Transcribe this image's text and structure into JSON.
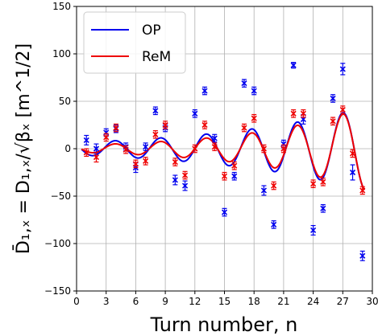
{
  "chart_data": {
    "type": "line",
    "xlabel": "Turn number, n",
    "ylabel": "D̄₁,ₓ = D₁,ₓ/√βₓ [m^1/2]",
    "xlim": [
      0,
      30
    ],
    "ylim": [
      -150,
      150
    ],
    "xticks": [
      0,
      3,
      6,
      9,
      12,
      15,
      18,
      21,
      24,
      27,
      30
    ],
    "yticks": [
      -150,
      -100,
      -50,
      0,
      50,
      100,
      150
    ],
    "grid": true,
    "legend_position": "top-left",
    "series": [
      {
        "name": "OP",
        "color": "#0000ee",
        "curve": {
          "amplitude_start": 7,
          "amplitude_growth": 0.065,
          "period": 4.62,
          "phase_peak_n": 27.0
        },
        "points": [
          {
            "x": 1,
            "y": 9,
            "err": 5
          },
          {
            "x": 2,
            "y": 0,
            "err": 5
          },
          {
            "x": 3,
            "y": 17,
            "err": 4
          },
          {
            "x": 4,
            "y": 21,
            "err": 4
          },
          {
            "x": 5,
            "y": 2,
            "err": 4
          },
          {
            "x": 6,
            "y": -20,
            "err": 5
          },
          {
            "x": 7,
            "y": 2,
            "err": 4
          },
          {
            "x": 8,
            "y": 40,
            "err": 4
          },
          {
            "x": 9,
            "y": 22,
            "err": 4
          },
          {
            "x": 10,
            "y": -33,
            "err": 5
          },
          {
            "x": 11,
            "y": -39,
            "err": 5
          },
          {
            "x": 12,
            "y": 37,
            "err": 4
          },
          {
            "x": 13,
            "y": 61,
            "err": 4
          },
          {
            "x": 14,
            "y": 11,
            "err": 4
          },
          {
            "x": 15,
            "y": -67,
            "err": 4
          },
          {
            "x": 16,
            "y": -29,
            "err": 4
          },
          {
            "x": 17,
            "y": 69,
            "err": 4
          },
          {
            "x": 18,
            "y": 61,
            "err": 4
          },
          {
            "x": 19,
            "y": -44,
            "err": 5
          },
          {
            "x": 20,
            "y": -80,
            "err": 4
          },
          {
            "x": 21,
            "y": 5,
            "err": 4
          },
          {
            "x": 22,
            "y": 88,
            "err": 3
          },
          {
            "x": 23,
            "y": 31,
            "err": 5
          },
          {
            "x": 24,
            "y": -86,
            "err": 5
          },
          {
            "x": 25,
            "y": -63,
            "err": 4
          },
          {
            "x": 26,
            "y": 53,
            "err": 4
          },
          {
            "x": 27,
            "y": 84,
            "err": 6
          },
          {
            "x": 28,
            "y": -25,
            "err": 8
          },
          {
            "x": 29,
            "y": -113,
            "err": 5
          }
        ]
      },
      {
        "name": "ReM",
        "color": "#ee0000",
        "curve": {
          "amplitude_start": 4,
          "amplitude_growth": 0.085,
          "period": 4.62,
          "phase_peak_n": 27.0
        },
        "points": [
          {
            "x": 1,
            "y": -4,
            "err": 4
          },
          {
            "x": 2,
            "y": -9,
            "err": 5
          },
          {
            "x": 3,
            "y": 12,
            "err": 4
          },
          {
            "x": 4,
            "y": 22,
            "err": 4
          },
          {
            "x": 5,
            "y": -1,
            "err": 4
          },
          {
            "x": 6,
            "y": -16,
            "err": 4
          },
          {
            "x": 7,
            "y": -13,
            "err": 4
          },
          {
            "x": 8,
            "y": 15,
            "err": 4
          },
          {
            "x": 9,
            "y": 25,
            "err": 4
          },
          {
            "x": 10,
            "y": -14,
            "err": 4
          },
          {
            "x": 11,
            "y": -28,
            "err": 4
          },
          {
            "x": 12,
            "y": 0,
            "err": 4
          },
          {
            "x": 13,
            "y": 25,
            "err": 4
          },
          {
            "x": 14,
            "y": 2,
            "err": 4
          },
          {
            "x": 15,
            "y": -29,
            "err": 4
          },
          {
            "x": 16,
            "y": -18,
            "err": 4
          },
          {
            "x": 17,
            "y": 22,
            "err": 4
          },
          {
            "x": 18,
            "y": 32,
            "err": 4
          },
          {
            "x": 19,
            "y": 0,
            "err": 4
          },
          {
            "x": 20,
            "y": -39,
            "err": 4
          },
          {
            "x": 21,
            "y": 0,
            "err": 4
          },
          {
            "x": 22,
            "y": 37,
            "err": 4
          },
          {
            "x": 23,
            "y": 37,
            "err": 4
          },
          {
            "x": 24,
            "y": -37,
            "err": 4
          },
          {
            "x": 25,
            "y": -35,
            "err": 4
          },
          {
            "x": 26,
            "y": 29,
            "err": 4
          },
          {
            "x": 27,
            "y": 41,
            "err": 4
          },
          {
            "x": 28,
            "y": -5,
            "err": 4
          },
          {
            "x": 29,
            "y": -44,
            "err": 4
          }
        ]
      }
    ]
  }
}
